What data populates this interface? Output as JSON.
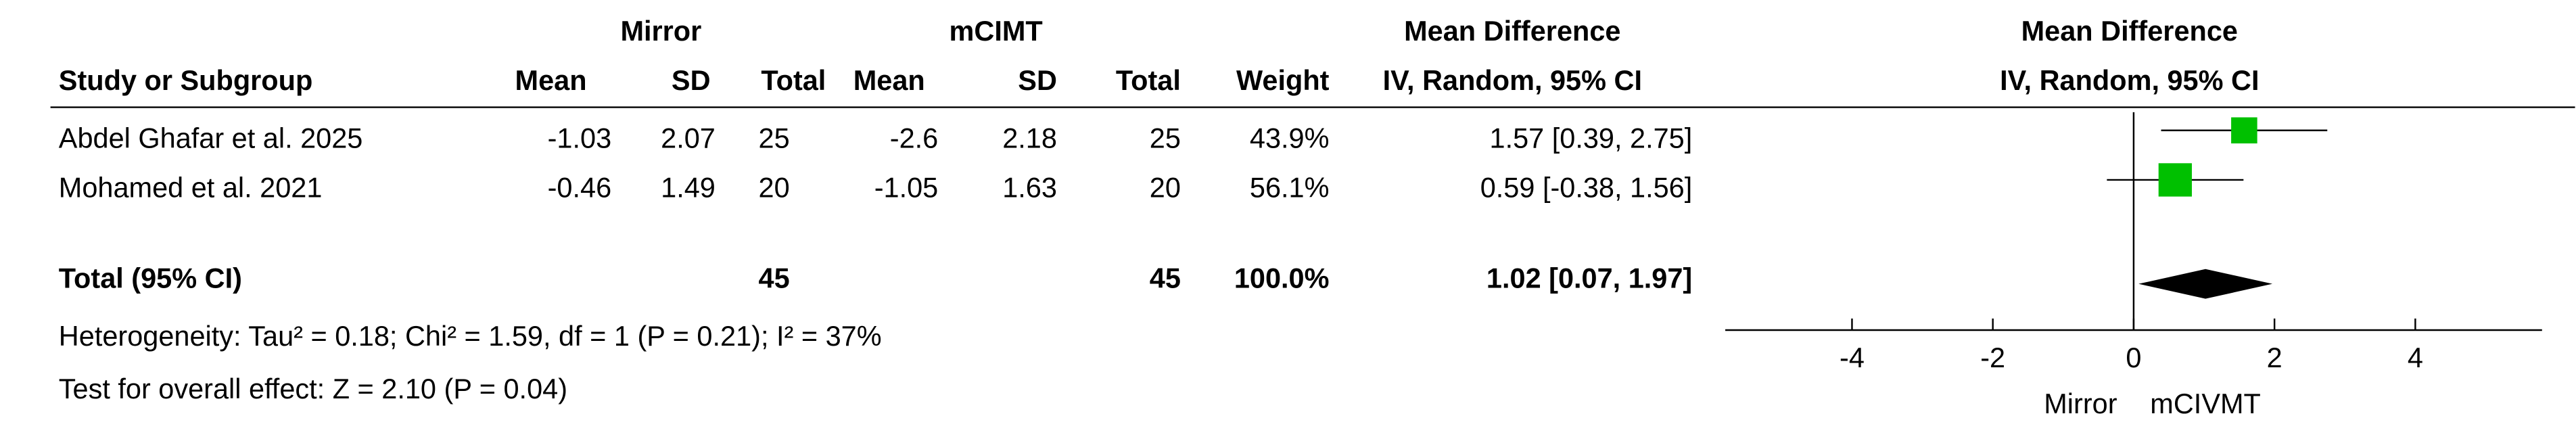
{
  "chart_data": {
    "type": "forest",
    "group_headers": [
      "Mirror",
      "mCIMT",
      "Mean Difference"
    ],
    "column_headers": [
      "Study or Subgroup",
      "Mean",
      "SD",
      "Total",
      "Mean",
      "SD",
      "Total",
      "Weight",
      "IV, Random, 95% CI"
    ],
    "plot_title": "Mean Difference",
    "plot_subtitle": "IV, Random, 95% CI",
    "studies": [
      {
        "name": "Abdel Ghafar et al. 2025",
        "mirror_mean": -1.03,
        "mirror_sd": 2.07,
        "mirror_total": 25,
        "mcimt_mean": -2.6,
        "mcimt_sd": 2.18,
        "mcimt_total": 25,
        "weight": 43.9,
        "weight_label": "43.9%",
        "md": 1.57,
        "ci": [
          0.39,
          2.75
        ],
        "md_label": "1.57 [0.39, 2.75]"
      },
      {
        "name": "Mohamed et al. 2021",
        "mirror_mean": -0.46,
        "mirror_sd": 1.49,
        "mirror_total": 20,
        "mcimt_mean": -1.05,
        "mcimt_sd": 1.63,
        "mcimt_total": 20,
        "weight": 56.1,
        "weight_label": "56.1%",
        "md": 0.59,
        "ci": [
          -0.38,
          1.56
        ],
        "md_label": "0.59 [-0.38, 1.56]"
      }
    ],
    "total": {
      "name": "Total (95% CI)",
      "mirror_total": 45,
      "mcimt_total": 45,
      "weight": 100,
      "weight_label": "100.0%",
      "md": 1.02,
      "ci": [
        0.07,
        1.97
      ],
      "md_label": "1.02 [0.07, 1.97]"
    },
    "heterogeneity": "Heterogeneity: Tau² = 0.18; Chi² = 1.59, df = 1 (P = 0.21); I² = 37%",
    "overall_effect": "Test for overall effect: Z = 2.10 (P = 0.04)",
    "square_color": "#00c000",
    "diamond_color": "#000000",
    "xlim": [
      -5.8,
      5.8
    ],
    "xticks": [
      -4,
      -2,
      0,
      2,
      4
    ],
    "favours": [
      "Mirror",
      "mCIVMT"
    ]
  }
}
